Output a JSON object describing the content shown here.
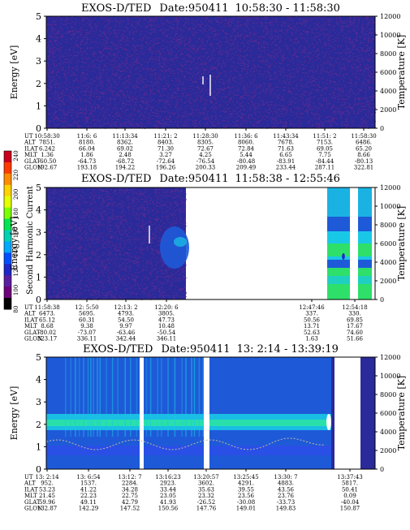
{
  "colors": {
    "background_low": "#2a2a9a",
    "noise": "#7a2b8c",
    "mid_blue": "#1e5ad8",
    "cyan": "#19c8e6",
    "green": "#2ee06a",
    "white": "#ffffff"
  },
  "colorbar": {
    "label": "Second Harmonic Current",
    "ticks": [
      "240",
      "220",
      "200",
      "180",
      "160",
      "140",
      "120",
      "100",
      "80"
    ],
    "colors": [
      "#c8001e",
      "#ff3c00",
      "#ff8c00",
      "#ffd200",
      "#e6ff00",
      "#7cff00",
      "#00e650",
      "#00d2b4",
      "#00aaff",
      "#0050ff",
      "#1e28c8",
      "#5a1ea0",
      "#6e007a",
      "#000000"
    ]
  },
  "chart_data": [
    {
      "type": "heatmap",
      "title": "EXOS-D/TED",
      "date_label": "Date:950411",
      "time_range": "10:58:30 - 11:58:30",
      "ylabel": "Energy [eV]",
      "ylabel_right": "Temperature [K]",
      "ylim": [
        0,
        5
      ],
      "yticks": [
        "0",
        "1",
        "2",
        "3",
        "4",
        "5"
      ],
      "ylim_right": [
        0,
        12000
      ],
      "yticks_right": [
        "0",
        "2000",
        "4000",
        "6000",
        "8000",
        "10000",
        "12000"
      ],
      "row_labels": [
        "UT",
        "ALT",
        "ILAT",
        "MLT",
        "GLAT",
        "GLON"
      ],
      "columns": [
        [
          "10:58:30",
          "7851.",
          "6.242",
          "1.36",
          "-60.50",
          "192.67"
        ],
        [
          "11:6: 6",
          "8180.",
          "66.04",
          "1.86",
          "-64.73",
          "193.18"
        ],
        [
          "11:13:34",
          "8362.",
          "69.02",
          "2.48",
          "-68.72",
          "194.22"
        ],
        [
          "11:21: 2",
          "8403.",
          "71.30",
          "3.27",
          "-72.64",
          "196.26"
        ],
        [
          "11:28:30",
          "8305.",
          "72.67",
          "4.25",
          "-76.54",
          "200.33"
        ],
        [
          "11:36: 6",
          "8060.",
          "72.84",
          "5.44",
          "-80.48",
          "209.49"
        ],
        [
          "11:43:34",
          "7678.",
          "71.63",
          "6.65",
          "-83.91",
          "233.44"
        ],
        [
          "11:51: 2",
          "7153.",
          "69.05",
          "7.75",
          "-84.44",
          "287.11"
        ],
        [
          "11:58:30",
          "6486.",
          "65.20",
          "8.66",
          "-80.13",
          "322.81"
        ]
      ]
    },
    {
      "type": "heatmap",
      "title": "EXOS-D/TED",
      "date_label": "Date:950411",
      "time_range": "11:58:38 - 12:55:46",
      "ylabel": "Energy [eV]",
      "ylabel_right": "Temperature [K]",
      "ylim": [
        0,
        5
      ],
      "yticks": [
        "0",
        "1",
        "2",
        "3",
        "4",
        "5"
      ],
      "ylim_right": [
        0,
        12000
      ],
      "yticks_right": [
        "0",
        "2000",
        "4000",
        "6000",
        "8000",
        "10000",
        "12000"
      ],
      "row_labels": [
        "UT",
        "ALT",
        "ILAT",
        "MLT",
        "GLAT",
        "GLON"
      ],
      "columns": [
        [
          "11:58:38",
          "6473.",
          "65.12",
          "8.68",
          "-80.02",
          "323.17"
        ],
        [
          "12: 5:50",
          "5695.",
          "60.31",
          "9.38",
          "-73.07",
          "336.11"
        ],
        [
          "12:13: 2",
          "4793.",
          "54.50",
          "9.97",
          "-63.46",
          "342.44"
        ],
        [
          "12:20: 6",
          "3805.",
          "47.73",
          "10.48",
          "-50.54",
          "346.11"
        ],
        [
          "12:47:46",
          "337.",
          "50.56",
          "13.71",
          "52.63",
          "1.63"
        ],
        [
          "12:54:18",
          "",
          "69.85",
          "17.67",
          "74.60",
          "51.66"
        ]
      ],
      "extra_labels": [
        "330."
      ]
    },
    {
      "type": "heatmap",
      "title": "EXOS-D/TED",
      "date_label": "Date:950411",
      "time_range": "13: 2:14 - 13:39:19",
      "ylabel": "Energy [eV]",
      "ylabel_right": "Temperature [K]",
      "ylim": [
        0,
        5
      ],
      "yticks": [
        "0",
        "1",
        "2",
        "3",
        "4",
        "5"
      ],
      "ylim_right": [
        0,
        12000
      ],
      "yticks_right": [
        "0",
        "2000",
        "4000",
        "6000",
        "8000",
        "10000",
        "12000"
      ],
      "row_labels": [
        "UT",
        "ALT",
        "ILAT",
        "MLT",
        "GLAT",
        "GLON"
      ],
      "columns": [
        [
          "13: 2:14",
          "952.",
          "53.23",
          "21.45",
          "59.96",
          "132.87"
        ],
        [
          "13: 6:54",
          "1537.",
          "41.22",
          "22.23",
          "49.11",
          "142.29"
        ],
        [
          "13:12: 7",
          "2284.",
          "34.28",
          "22.75",
          "42.79",
          "147.52"
        ],
        [
          "13:16:23",
          "2923.",
          "33.44",
          "23.05",
          "41.93",
          "150.56"
        ],
        [
          "13:20:57",
          "3602.",
          "35.63",
          "23.32",
          "-26.52",
          "147.76"
        ],
        [
          "13:25:45",
          "4291.",
          "39.55",
          "23.56",
          "-30.08",
          "149.01"
        ],
        [
          "13:30: 7",
          "4883.",
          "43.56",
          "23.76",
          "-33.73",
          "149.83"
        ],
        [
          "13:37:43",
          "5817.",
          "50.41",
          "0.09",
          "-40.04",
          "150.87"
        ]
      ]
    }
  ]
}
